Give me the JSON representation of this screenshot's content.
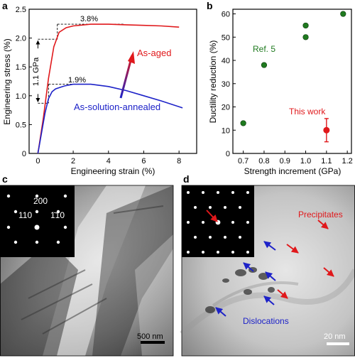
{
  "chart_data": [
    {
      "panel": "a",
      "type": "line",
      "xlabel": "Engineering strain (%)",
      "ylabel": "Engineering stress (%)",
      "xlim": [
        -0.5,
        9
      ],
      "ylim": [
        0,
        2.5
      ],
      "xticks": [
        "0",
        "2",
        "4",
        "6",
        "8"
      ],
      "yticks": [
        "0",
        "0.5",
        "1.0",
        "1.5",
        "2.0",
        "2.5"
      ],
      "series": [
        {
          "name": "As-aged",
          "color": "#e0181b",
          "x": [
            0,
            0.3,
            0.6,
            0.9,
            1.2,
            1.6,
            2,
            3,
            4,
            5,
            6,
            7,
            8
          ],
          "y": [
            0,
            0.6,
            1.3,
            1.85,
            2.1,
            2.18,
            2.21,
            2.24,
            2.24,
            2.23,
            2.22,
            2.21,
            2.19
          ]
        },
        {
          "name": "As-solution-annealed",
          "color": "#1d22c8",
          "x": [
            0,
            0.2,
            0.4,
            0.6,
            0.8,
            1.0,
            1.5,
            2,
            3,
            4,
            5,
            6,
            7,
            8.2
          ],
          "y": [
            0,
            0.35,
            0.7,
            0.95,
            1.07,
            1.12,
            1.17,
            1.2,
            1.2,
            1.16,
            1.09,
            1.0,
            0.91,
            0.79
          ]
        }
      ],
      "annotations": [
        "3.8%",
        "1.9%",
        "1.1 GPa"
      ]
    },
    {
      "panel": "b",
      "type": "scatter",
      "xlabel": "Strength increment (GPa)",
      "ylabel": "Ductility reduction (%)",
      "xlim": [
        0.65,
        1.22
      ],
      "ylim": [
        0,
        62
      ],
      "xticks": [
        "0.7",
        "0.8",
        "0.9",
        "1.0",
        "1.1",
        "1.2"
      ],
      "yticks": [
        "0",
        "10",
        "20",
        "30",
        "40",
        "50",
        "60"
      ],
      "series": [
        {
          "name": "Ref. 5",
          "color": "#1f7a1f",
          "x": [
            0.7,
            0.8,
            1.0,
            1.0,
            1.18
          ],
          "y": [
            13,
            38,
            50,
            55,
            60
          ]
        },
        {
          "name": "This work",
          "color": "#e0181b",
          "x": [
            1.1
          ],
          "y": [
            10
          ],
          "yerr": [
            5
          ]
        }
      ]
    }
  ],
  "panel_labels": {
    "a": "a",
    "b": "b",
    "c": "c",
    "d": "d"
  },
  "micro_c": {
    "spots": [
      "200",
      "110",
      "1̄10"
    ],
    "scale": "500 nm"
  },
  "micro_d": {
    "precipitates": "Precipitates",
    "dislocations": "Dislocations",
    "scale": "20 nm"
  }
}
